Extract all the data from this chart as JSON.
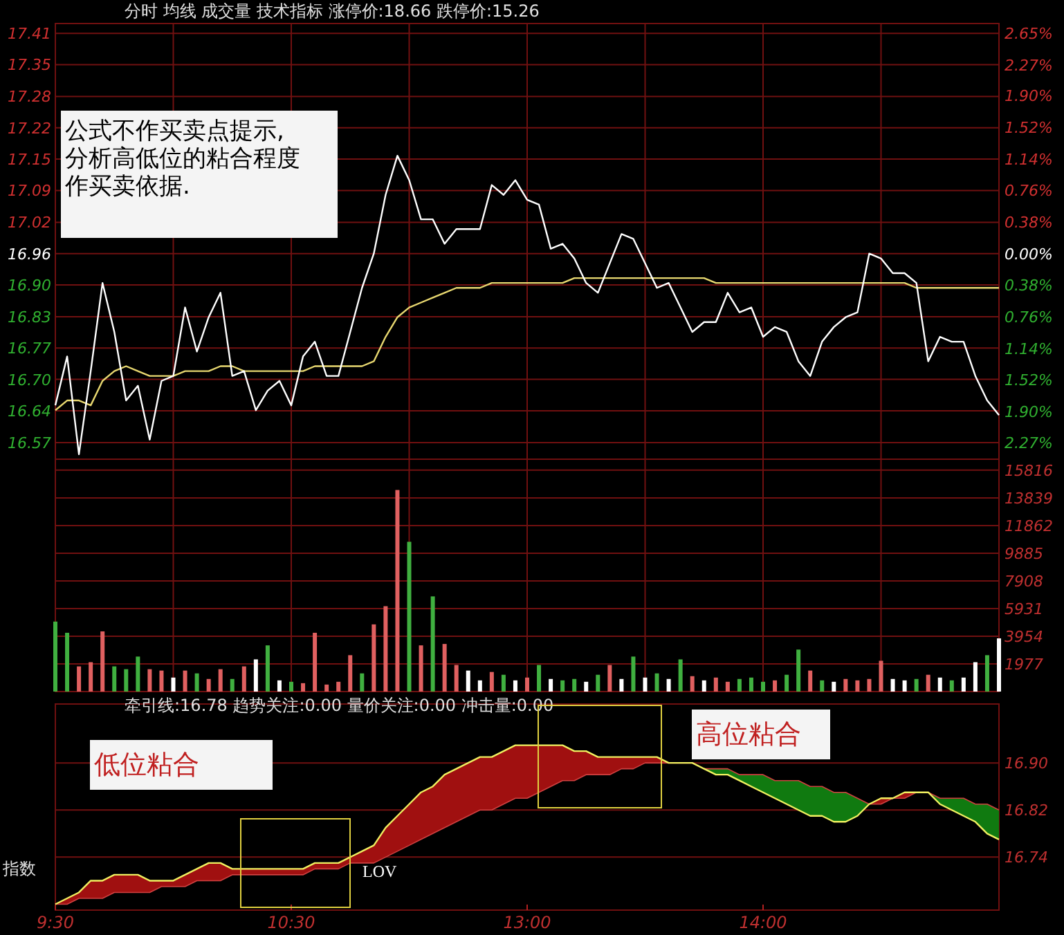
{
  "chart_data": [
    {
      "type": "line",
      "title": "分时 均线 成交量 技术指标 涨停价:18.66 跌停价:15.26",
      "annotations": [
        "公式不作买卖点提示,分析高低位的粘合程度作买卖依据."
      ],
      "categories": [
        null,
        null,
        null,
        null,
        null,
        null,
        null,
        null,
        null,
        null,
        null,
        null,
        null,
        null,
        null,
        null,
        null,
        null,
        null,
        null,
        null,
        null,
        null,
        null,
        null,
        null,
        null,
        null,
        null,
        null,
        null,
        null,
        null,
        null,
        null,
        null,
        null,
        null,
        null,
        null,
        null,
        null,
        null,
        null,
        null,
        null,
        null,
        null,
        null,
        null,
        null,
        null,
        null,
        null,
        null,
        null,
        null,
        null,
        null,
        null,
        null,
        null,
        null,
        null,
        null,
        null,
        null,
        null,
        null,
        null,
        null,
        null,
        null,
        null,
        null,
        null,
        null,
        null,
        null,
        null,
        null
      ],
      "ylim": [
        16.54,
        17.43
      ],
      "yticks": [
        17.41,
        {
          "value": 17.346,
          "label": "17.35"
        },
        {
          "value": 17.281,
          "label": "17.28"
        },
        {
          "value": 17.217,
          "label": "17.22"
        },
        {
          "value": 17.153,
          "label": "17.15"
        },
        {
          "value": 17.089,
          "label": "17.09"
        },
        {
          "value": 17.024,
          "label": "17.02"
        },
        16.96,
        {
          "value": 16.896,
          "label": "16.90"
        },
        {
          "value": 16.831,
          "label": "16.83"
        },
        {
          "value": 16.767,
          "label": "16.77"
        },
        {
          "value": 16.703,
          "label": "16.70"
        },
        {
          "value": 16.639,
          "label": "16.64"
        },
        {
          "value": 16.574,
          "label": "16.57"
        }
      ],
      "y2lim": [
        -2.473,
        2.768
      ],
      "y2ticks": [
        {
          "value": 2.65,
          "label": "2.65%"
        },
        {
          "value": 2.27,
          "label": "2.27%"
        },
        {
          "value": 1.9,
          "label": "1.90%"
        },
        {
          "value": 1.52,
          "label": "1.52%"
        },
        {
          "value": 1.14,
          "label": "1.14%"
        },
        {
          "value": 0.76,
          "label": "0.76%"
        },
        {
          "value": 0.38,
          "label": "0.38%"
        },
        {
          "value": 0,
          "label": "0.00%"
        },
        {
          "value": -0.38,
          "label": "0.38%"
        },
        {
          "value": -0.76,
          "label": "0.76%"
        },
        {
          "value": -1.14,
          "label": "1.14%"
        },
        {
          "value": -1.52,
          "label": "1.52%"
        },
        {
          "value": -1.9,
          "label": "1.90%"
        },
        {
          "value": -2.27,
          "label": "2.27%"
        }
      ],
      "grid": true,
      "series": [
        {
          "color": "#ffffff",
          "values": [
            16.65,
            16.75,
            16.55,
            16.72,
            16.9,
            16.8,
            16.66,
            16.69,
            16.58,
            16.7,
            16.71,
            16.85,
            16.76,
            16.83,
            16.88,
            16.71,
            16.72,
            16.64,
            16.68,
            16.7,
            16.65,
            16.75,
            16.78,
            16.71,
            16.71,
            16.8,
            16.89,
            16.96,
            17.08,
            17.16,
            17.11,
            17.03,
            17.03,
            16.98,
            17.01,
            17.01,
            17.01,
            17.1,
            17.08,
            17.11,
            17.07,
            17.06,
            16.97,
            16.98,
            16.95,
            16.9,
            16.88,
            16.94,
            17.0,
            16.99,
            16.94,
            16.89,
            16.9,
            16.85,
            16.8,
            16.82,
            16.82,
            16.88,
            16.84,
            16.85,
            16.79,
            16.81,
            16.8,
            16.74,
            16.71,
            16.78,
            16.81,
            16.83,
            16.84,
            16.96,
            16.95,
            16.92,
            16.92,
            16.9,
            16.74,
            16.79,
            16.78,
            16.78,
            16.71,
            16.66,
            16.63
          ]
        },
        {
          "color": "#e8d870",
          "values": [
            16.64,
            16.66,
            16.66,
            16.65,
            16.7,
            16.72,
            16.73,
            16.72,
            16.71,
            16.71,
            16.71,
            16.72,
            16.72,
            16.72,
            16.73,
            16.73,
            16.72,
            16.72,
            16.72,
            16.72,
            16.72,
            16.72,
            16.73,
            16.73,
            16.73,
            16.73,
            16.73,
            16.74,
            16.79,
            16.83,
            16.85,
            16.86,
            16.87,
            16.88,
            16.89,
            16.89,
            16.89,
            16.9,
            16.9,
            16.9,
            16.9,
            16.9,
            16.9,
            16.9,
            16.91,
            16.91,
            16.91,
            16.91,
            16.91,
            16.91,
            16.91,
            16.91,
            16.91,
            16.91,
            16.91,
            16.91,
            16.9,
            16.9,
            16.9,
            16.9,
            16.9,
            16.9,
            16.9,
            16.9,
            16.9,
            16.9,
            16.9,
            16.9,
            16.9,
            16.9,
            16.9,
            16.9,
            16.9,
            16.89,
            16.89,
            16.89,
            16.89,
            16.89,
            16.89,
            16.89,
            16.89
          ]
        }
      ]
    },
    {
      "type": "bar",
      "categories": [
        null,
        null,
        null,
        null,
        null,
        null,
        null,
        null,
        null,
        null,
        null,
        null,
        null,
        null,
        null,
        null,
        null,
        null,
        null,
        null,
        null,
        null,
        null,
        null,
        null,
        null,
        null,
        null,
        null,
        null,
        null,
        null,
        null,
        null,
        null,
        null,
        null,
        null,
        null,
        null,
        null,
        null,
        null,
        null,
        null,
        null,
        null,
        null,
        null,
        null,
        null,
        null,
        null,
        null,
        null,
        null,
        null,
        null,
        null,
        null,
        null,
        null,
        null,
        null,
        null,
        null,
        null,
        null,
        null,
        null,
        null,
        null,
        null,
        null,
        null,
        null,
        null,
        null,
        null,
        null,
        null
      ],
      "ylim": [
        0,
        16600
      ],
      "yticks": [
        1977,
        3954,
        5931,
        7908,
        9885,
        11862,
        13839,
        15816
      ],
      "grid": true,
      "values": [
        5000,
        4200,
        1800,
        2100,
        4300,
        1800,
        1600,
        2500,
        1600,
        1500,
        1000,
        1500,
        1300,
        900,
        1600,
        900,
        1800,
        2300,
        3300,
        800,
        700,
        600,
        4200,
        500,
        700,
        2600,
        1300,
        4800,
        6100,
        14400,
        10700,
        3300,
        6800,
        3400,
        1900,
        1500,
        800,
        1400,
        1200,
        800,
        1000,
        1900,
        900,
        800,
        900,
        700,
        1200,
        1900,
        900,
        2500,
        1000,
        1300,
        900,
        2300,
        1100,
        800,
        1000,
        700,
        900,
        1000,
        700,
        800,
        1200,
        3000,
        1500,
        800,
        700,
        900,
        800,
        900,
        2200,
        900,
        800,
        900,
        1200,
        1000,
        800,
        1000,
        2100,
        2600,
        3800
      ],
      "colors": [
        "#40b040",
        "#40b040",
        "#e06060",
        "#e06060",
        "#e06060",
        "#40b040",
        "#40b040",
        "#40b040",
        "#e06060",
        "#e06060",
        "#ffffff",
        "#e06060",
        "#40b040",
        "#e06060",
        "#e06060",
        "#40b040",
        "#e06060",
        "#ffffff",
        "#40b040",
        "#ffffff",
        "#40b040",
        "#e06060",
        "#e06060",
        "#e06060",
        "#e06060",
        "#e06060",
        "#40b040",
        "#e06060",
        "#e06060",
        "#e06060",
        "#40b040",
        "#e06060",
        "#40b040",
        "#e06060",
        "#e06060",
        "#ffffff",
        "#ffffff",
        "#e06060",
        "#40b040",
        "#ffffff",
        "#e06060",
        "#40b040",
        "#ffffff",
        "#40b040",
        "#40b040",
        "#ffffff",
        "#40b040",
        "#e06060",
        "#ffffff",
        "#40b040",
        "#ffffff",
        "#40b040",
        "#ffffff",
        "#40b040",
        "#e06060",
        "#ffffff",
        "#e06060",
        "#e06060",
        "#40b040",
        "#40b040",
        "#40b040",
        "#e06060",
        "#40b040",
        "#40b040",
        "#e06060",
        "#40b040",
        "#ffffff",
        "#e06060",
        "#e06060",
        "#e06060",
        "#e06060",
        "#ffffff",
        "#ffffff",
        "#40b040",
        "#e06060",
        "#ffffff",
        "#40b040",
        "#ffffff",
        "#ffffff",
        "#40b040",
        "#ffffff"
      ]
    },
    {
      "type": "line",
      "title": "牵引线:16.78 趋势关注:0.00 量价关注:0.00 冲击量:0.00",
      "annotations": [
        "低位粘合",
        "高位粘合",
        "LOV",
        "指数"
      ],
      "categories": [
        "9:30",
        null,
        null,
        null,
        null,
        null,
        null,
        null,
        null,
        null,
        null,
        null,
        null,
        null,
        null,
        null,
        null,
        null,
        null,
        null,
        "10:30",
        null,
        null,
        null,
        null,
        null,
        null,
        null,
        null,
        null,
        null,
        null,
        null,
        null,
        null,
        null,
        null,
        null,
        null,
        null,
        "13:00",
        null,
        null,
        null,
        null,
        null,
        null,
        null,
        null,
        null,
        null,
        null,
        null,
        null,
        null,
        null,
        null,
        null,
        null,
        null,
        "14:00",
        null,
        null,
        null,
        null,
        null,
        null,
        null,
        null,
        null,
        null,
        null,
        null,
        null,
        null,
        null,
        null,
        null,
        null,
        null,
        null
      ],
      "ylim": [
        16.65,
        17.0
      ],
      "yticks": [
        16.74,
        16.82,
        {
          "value": 16.9,
          "label": "16.90"
        }
      ],
      "grid": "y",
      "series": [
        {
          "color": "#f0f060",
          "values": [
            16.66,
            16.67,
            16.68,
            16.7,
            16.7,
            16.71,
            16.71,
            16.71,
            16.7,
            16.7,
            16.7,
            16.71,
            16.72,
            16.73,
            16.73,
            16.72,
            16.72,
            16.72,
            16.72,
            16.72,
            16.72,
            16.72,
            16.73,
            16.73,
            16.73,
            16.74,
            16.75,
            16.76,
            16.79,
            16.81,
            16.83,
            16.85,
            16.86,
            16.88,
            16.89,
            16.9,
            16.91,
            16.91,
            16.92,
            16.93,
            16.93,
            16.93,
            16.93,
            16.93,
            16.92,
            16.92,
            16.91,
            16.91,
            16.91,
            16.91,
            16.91,
            16.91,
            16.9,
            16.9,
            16.9,
            16.89,
            16.88,
            16.88,
            16.87,
            16.86,
            16.85,
            16.84,
            16.83,
            16.82,
            16.81,
            16.81,
            16.8,
            16.8,
            16.81,
            16.83,
            16.84,
            16.84,
            16.85,
            16.85,
            16.85,
            16.83,
            16.82,
            16.81,
            16.8,
            16.78,
            16.77
          ]
        },
        {
          "color": "#d04040",
          "values": [
            16.66,
            16.66,
            16.67,
            16.67,
            16.67,
            16.68,
            16.68,
            16.68,
            16.68,
            16.69,
            16.69,
            16.69,
            16.7,
            16.7,
            16.7,
            16.71,
            16.71,
            16.71,
            16.71,
            16.71,
            16.71,
            16.71,
            16.72,
            16.72,
            16.72,
            16.73,
            16.73,
            16.73,
            16.74,
            16.75,
            16.76,
            16.77,
            16.78,
            16.79,
            16.8,
            16.81,
            16.82,
            16.82,
            16.83,
            16.84,
            16.84,
            16.85,
            16.86,
            16.87,
            16.87,
            16.88,
            16.88,
            16.88,
            16.89,
            16.89,
            16.9,
            16.9,
            16.9,
            16.9,
            16.9,
            16.89,
            16.89,
            16.89,
            16.88,
            16.88,
            16.88,
            16.87,
            16.87,
            16.87,
            16.86,
            16.86,
            16.85,
            16.85,
            16.84,
            16.83,
            16.83,
            16.84,
            16.84,
            16.85,
            16.85,
            16.84,
            16.84,
            16.84,
            16.83,
            16.83,
            16.82
          ]
        }
      ]
    }
  ]
}
